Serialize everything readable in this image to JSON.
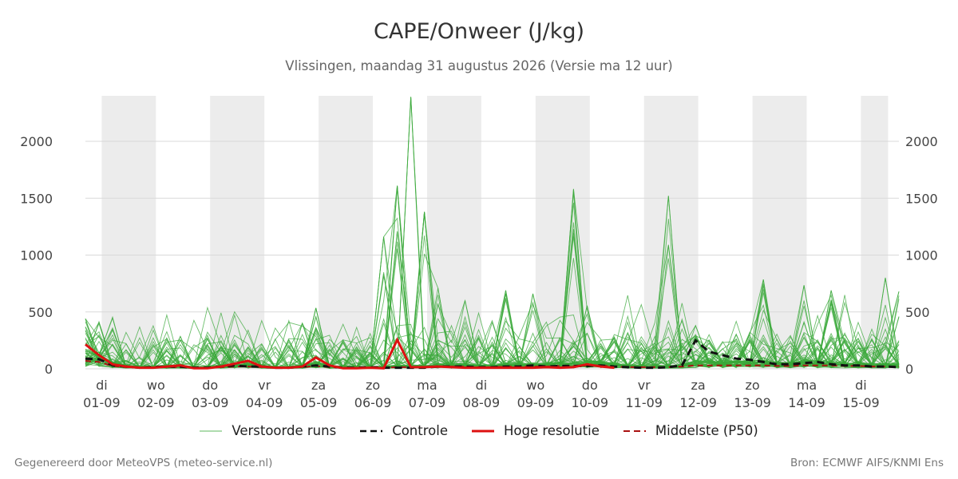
{
  "header": {
    "title": "CAPE/Onweer (J/kg)",
    "subtitle": "Vlissingen, maandag 31 augustus 2026 (Versie ma 12 uur)"
  },
  "footer": {
    "left": "Gegenereerd door MeteoVPS (meteo-service.nl)",
    "right": "Bron: ECMWF AIFS/KNMI Ens"
  },
  "legend": [
    {
      "label": "Verstoorde runs",
      "color": "#5cb85c",
      "style": "thin-solid"
    },
    {
      "label": "Controle",
      "color": "#111111",
      "style": "dashed"
    },
    {
      "label": "Hoge resolutie",
      "color": "#dd1111",
      "style": "solid"
    },
    {
      "label": "Middelste (P50)",
      "color": "#aa1111",
      "style": "dashed"
    }
  ],
  "chart_data": {
    "type": "line",
    "title": "CAPE/Onweer (J/kg)",
    "subtitle": "Vlissingen, maandag 31 augustus 2026 (Versie ma 12 uur)",
    "xlim": [
      0.7,
      15.7
    ],
    "ylim": [
      0,
      2400
    ],
    "yticks": [
      0,
      500,
      1000,
      1500,
      2000
    ],
    "grid": "horizontal",
    "legend_position": "bottom",
    "x_ticks": [
      {
        "x": 1,
        "day": "di",
        "date": "01-09"
      },
      {
        "x": 2,
        "day": "wo",
        "date": "02-09"
      },
      {
        "x": 3,
        "day": "do",
        "date": "03-09"
      },
      {
        "x": 4,
        "day": "vr",
        "date": "04-09"
      },
      {
        "x": 5,
        "day": "za",
        "date": "05-09"
      },
      {
        "x": 6,
        "day": "zo",
        "date": "06-09"
      },
      {
        "x": 7,
        "day": "ma",
        "date": "07-09"
      },
      {
        "x": 8,
        "day": "di",
        "date": "08-09"
      },
      {
        "x": 9,
        "day": "wo",
        "date": "09-09"
      },
      {
        "x": 10,
        "day": "do",
        "date": "10-09"
      },
      {
        "x": 11,
        "day": "vr",
        "date": "11-09"
      },
      {
        "x": 12,
        "day": "za",
        "date": "12-09"
      },
      {
        "x": 13,
        "day": "zo",
        "date": "13-09"
      },
      {
        "x": 14,
        "day": "ma",
        "date": "14-09"
      },
      {
        "x": 15,
        "day": "di",
        "date": "15-09"
      }
    ],
    "shaded_bands": [
      [
        1.0,
        2.0
      ],
      [
        3.0,
        4.0
      ],
      [
        5.0,
        6.0
      ],
      [
        7.0,
        8.0
      ],
      [
        9.0,
        10.0
      ],
      [
        11.0,
        12.0
      ],
      [
        13.0,
        14.0
      ],
      [
        15.0,
        15.5
      ]
    ],
    "highres": {
      "name": "Hoge resolutie",
      "x": [
        0.7,
        0.95,
        1.2,
        1.45,
        1.7,
        1.95,
        2.2,
        2.45,
        2.7,
        2.95,
        3.2,
        3.45,
        3.7,
        3.95,
        4.2,
        4.45,
        4.7,
        4.95,
        5.2,
        5.45,
        5.7,
        5.95,
        6.2,
        6.45,
        6.7,
        6.95,
        7.2,
        7.45,
        7.7,
        7.95,
        8.2,
        8.45,
        8.7,
        8.95,
        9.2,
        9.45,
        9.7,
        9.95,
        10.2,
        10.45
      ],
      "y": [
        215,
        120,
        40,
        20,
        10,
        10,
        20,
        30,
        5,
        5,
        20,
        45,
        70,
        20,
        10,
        10,
        20,
        100,
        30,
        5,
        5,
        10,
        5,
        255,
        15,
        15,
        20,
        15,
        10,
        10,
        10,
        10,
        10,
        10,
        15,
        10,
        15,
        40,
        20,
        10
      ]
    },
    "control": {
      "name": "Controle",
      "x": [
        0.7,
        0.95,
        1.2,
        1.45,
        1.7,
        1.95,
        2.2,
        2.45,
        2.7,
        2.95,
        3.2,
        3.45,
        3.7,
        3.95,
        4.2,
        4.45,
        4.7,
        4.95,
        5.2,
        5.45,
        5.7,
        5.95,
        6.2,
        6.45,
        6.7,
        6.95,
        7.2,
        7.45,
        7.7,
        7.95,
        8.2,
        8.45,
        8.7,
        8.95,
        9.2,
        9.45,
        9.7,
        9.95,
        10.2,
        10.45,
        10.7,
        10.95,
        11.2,
        11.45,
        11.7,
        11.95,
        12.2,
        12.45,
        12.7,
        12.95,
        13.2,
        13.45,
        13.7,
        13.95,
        14.2,
        14.45,
        14.7,
        14.95,
        15.2,
        15.45,
        15.7
      ],
      "y": [
        90,
        85,
        30,
        20,
        10,
        15,
        20,
        20,
        10,
        10,
        20,
        30,
        20,
        20,
        10,
        10,
        20,
        30,
        20,
        10,
        10,
        15,
        10,
        10,
        10,
        10,
        20,
        20,
        20,
        15,
        15,
        20,
        20,
        30,
        20,
        25,
        25,
        25,
        30,
        20,
        15,
        10,
        10,
        15,
        30,
        250,
        150,
        120,
        90,
        80,
        60,
        40,
        40,
        50,
        60,
        40,
        30,
        30,
        20,
        20,
        15
      ]
    },
    "median": {
      "name": "Middelste (P50)",
      "x": [
        0.7,
        0.95,
        1.2,
        1.45,
        1.7,
        1.95,
        2.2,
        2.45,
        2.7,
        2.95,
        3.2,
        3.45,
        3.7,
        3.95,
        4.2,
        4.45,
        4.7,
        4.95,
        5.2,
        5.45,
        5.7,
        5.95,
        6.2,
        6.45,
        6.7,
        6.95,
        7.2,
        7.45,
        7.7,
        7.95,
        8.2,
        8.45,
        8.7,
        8.95,
        9.2,
        9.45,
        9.7,
        9.95,
        10.2,
        10.45,
        10.7,
        10.95,
        11.2,
        11.45,
        11.7,
        11.95,
        12.2,
        12.45,
        12.7,
        12.95,
        13.2,
        13.45,
        13.7,
        13.95,
        14.2,
        14.45,
        14.7,
        14.95,
        15.2,
        15.45,
        15.7
      ],
      "y": [
        70,
        60,
        25,
        15,
        10,
        10,
        15,
        15,
        10,
        10,
        15,
        20,
        20,
        15,
        10,
        10,
        15,
        25,
        15,
        10,
        10,
        10,
        10,
        15,
        15,
        15,
        20,
        20,
        20,
        15,
        15,
        20,
        20,
        20,
        20,
        25,
        25,
        30,
        30,
        20,
        15,
        15,
        15,
        15,
        20,
        30,
        30,
        30,
        30,
        30,
        30,
        25,
        25,
        30,
        30,
        30,
        25,
        25,
        20,
        20,
        20
      ]
    },
    "perturbed_summary": {
      "name": "Verstoorde runs",
      "count": 50,
      "peaks": [
        {
          "x": 0.7,
          "y": 440
        },
        {
          "x": 3.15,
          "y": 200
        },
        {
          "x": 4.7,
          "y": 400
        },
        {
          "x": 4.95,
          "y": 535
        },
        {
          "x": 6.25,
          "y": 1160
        },
        {
          "x": 6.55,
          "y": 1610
        },
        {
          "x": 6.7,
          "y": 2390
        },
        {
          "x": 6.95,
          "y": 1380
        },
        {
          "x": 7.2,
          "y": 710
        },
        {
          "x": 7.7,
          "y": 600
        },
        {
          "x": 8.45,
          "y": 690
        },
        {
          "x": 8.95,
          "y": 660
        },
        {
          "x": 9.75,
          "y": 1580
        },
        {
          "x": 9.95,
          "y": 555
        },
        {
          "x": 11.55,
          "y": 1520
        },
        {
          "x": 11.95,
          "y": 380
        },
        {
          "x": 13.2,
          "y": 785
        },
        {
          "x": 13.95,
          "y": 735
        },
        {
          "x": 14.45,
          "y": 690
        },
        {
          "x": 15.45,
          "y": 800
        },
        {
          "x": 15.7,
          "y": 680
        }
      ]
    }
  }
}
